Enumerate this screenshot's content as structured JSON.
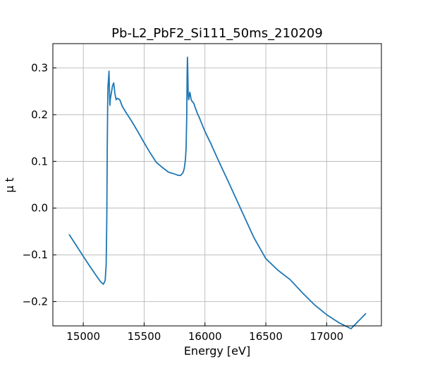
{
  "chart_data": {
    "type": "line",
    "title": "Pb-L2_PbF2_Si111_50ms_210209",
    "xlabel": "Energy [eV]",
    "ylabel": "μ t",
    "xlim": [
      14750,
      17450
    ],
    "ylim": [
      -0.252,
      0.352
    ],
    "grid": true,
    "x_ticks": [
      15000,
      15500,
      16000,
      16500,
      17000
    ],
    "x_tick_labels": [
      "15000",
      "15500",
      "16000",
      "16500",
      "17000"
    ],
    "y_ticks": [
      -0.2,
      -0.1,
      0.0,
      0.1,
      0.2,
      0.3
    ],
    "y_tick_labels": [
      "−0.2",
      "−0.1",
      "0.0",
      "0.1",
      "0.2",
      "0.3"
    ],
    "series_color": "#1f77b4",
    "series": [
      {
        "x": [
          14885,
          14950,
          15000,
          15050,
          15100,
          15140,
          15165,
          15180,
          15188,
          15193,
          15197,
          15200,
          15203,
          15207,
          15211,
          15215,
          15219,
          15223,
          15230,
          15240,
          15250,
          15260,
          15270,
          15280,
          15300,
          15320,
          15350,
          15400,
          15450,
          15500,
          15550,
          15600,
          15650,
          15700,
          15750,
          15780,
          15800,
          15820,
          15830,
          15840,
          15845,
          15850,
          15853,
          15856,
          15859,
          15862,
          15866,
          15870,
          15875,
          15880,
          15885,
          15890,
          15900,
          15910,
          15920,
          15930,
          15940,
          15950,
          15970,
          16000,
          16050,
          16100,
          16150,
          16200,
          16300,
          16400,
          16500,
          16600,
          16700,
          16800,
          16900,
          17000,
          17100,
          17200,
          17320
        ],
        "y": [
          -0.057,
          -0.083,
          -0.103,
          -0.123,
          -0.142,
          -0.157,
          -0.163,
          -0.155,
          -0.12,
          -0.02,
          0.12,
          0.22,
          0.262,
          0.275,
          0.293,
          0.25,
          0.22,
          0.235,
          0.245,
          0.262,
          0.268,
          0.245,
          0.232,
          0.235,
          0.232,
          0.218,
          0.205,
          0.185,
          0.163,
          0.14,
          0.118,
          0.098,
          0.087,
          0.077,
          0.073,
          0.07,
          0.07,
          0.076,
          0.085,
          0.105,
          0.13,
          0.2,
          0.285,
          0.323,
          0.29,
          0.245,
          0.232,
          0.238,
          0.248,
          0.243,
          0.234,
          0.23,
          0.227,
          0.223,
          0.215,
          0.208,
          0.201,
          0.196,
          0.183,
          0.164,
          0.137,
          0.108,
          0.08,
          0.052,
          -0.005,
          -0.062,
          -0.108,
          -0.133,
          -0.153,
          -0.181,
          -0.207,
          -0.228,
          -0.245,
          -0.258,
          -0.226
        ]
      }
    ]
  }
}
